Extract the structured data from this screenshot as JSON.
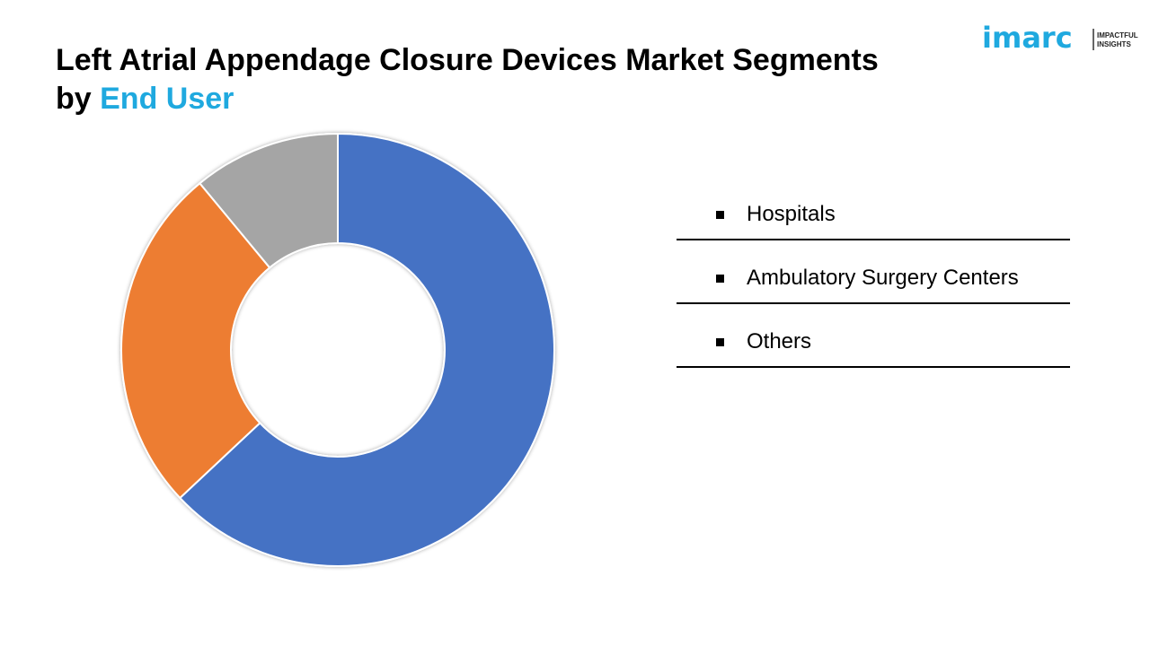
{
  "title": {
    "line1": "Left Atrial Appendage Closure Devices Market Segments",
    "line2_prefix": "by ",
    "line2_highlight": "End User"
  },
  "logo": {
    "brand": "imarc",
    "tagline_line1": "IMPACTFUL",
    "tagline_line2": "INSIGHTS",
    "color": "#1fa9df"
  },
  "chart_data": {
    "type": "pie",
    "variant": "donut",
    "start_angle_deg": 0,
    "direction": "clockwise",
    "categories": [
      "Hospitals",
      "Ambulatory Surgery Centers",
      "Others"
    ],
    "values": [
      63,
      26,
      11
    ],
    "colors": [
      "#4472c4",
      "#ed7d31",
      "#a5a5a5"
    ],
    "legend": "right"
  },
  "legend": {
    "items": [
      {
        "label": "Hospitals"
      },
      {
        "label": "Ambulatory Surgery Centers"
      },
      {
        "label": "Others"
      }
    ]
  }
}
